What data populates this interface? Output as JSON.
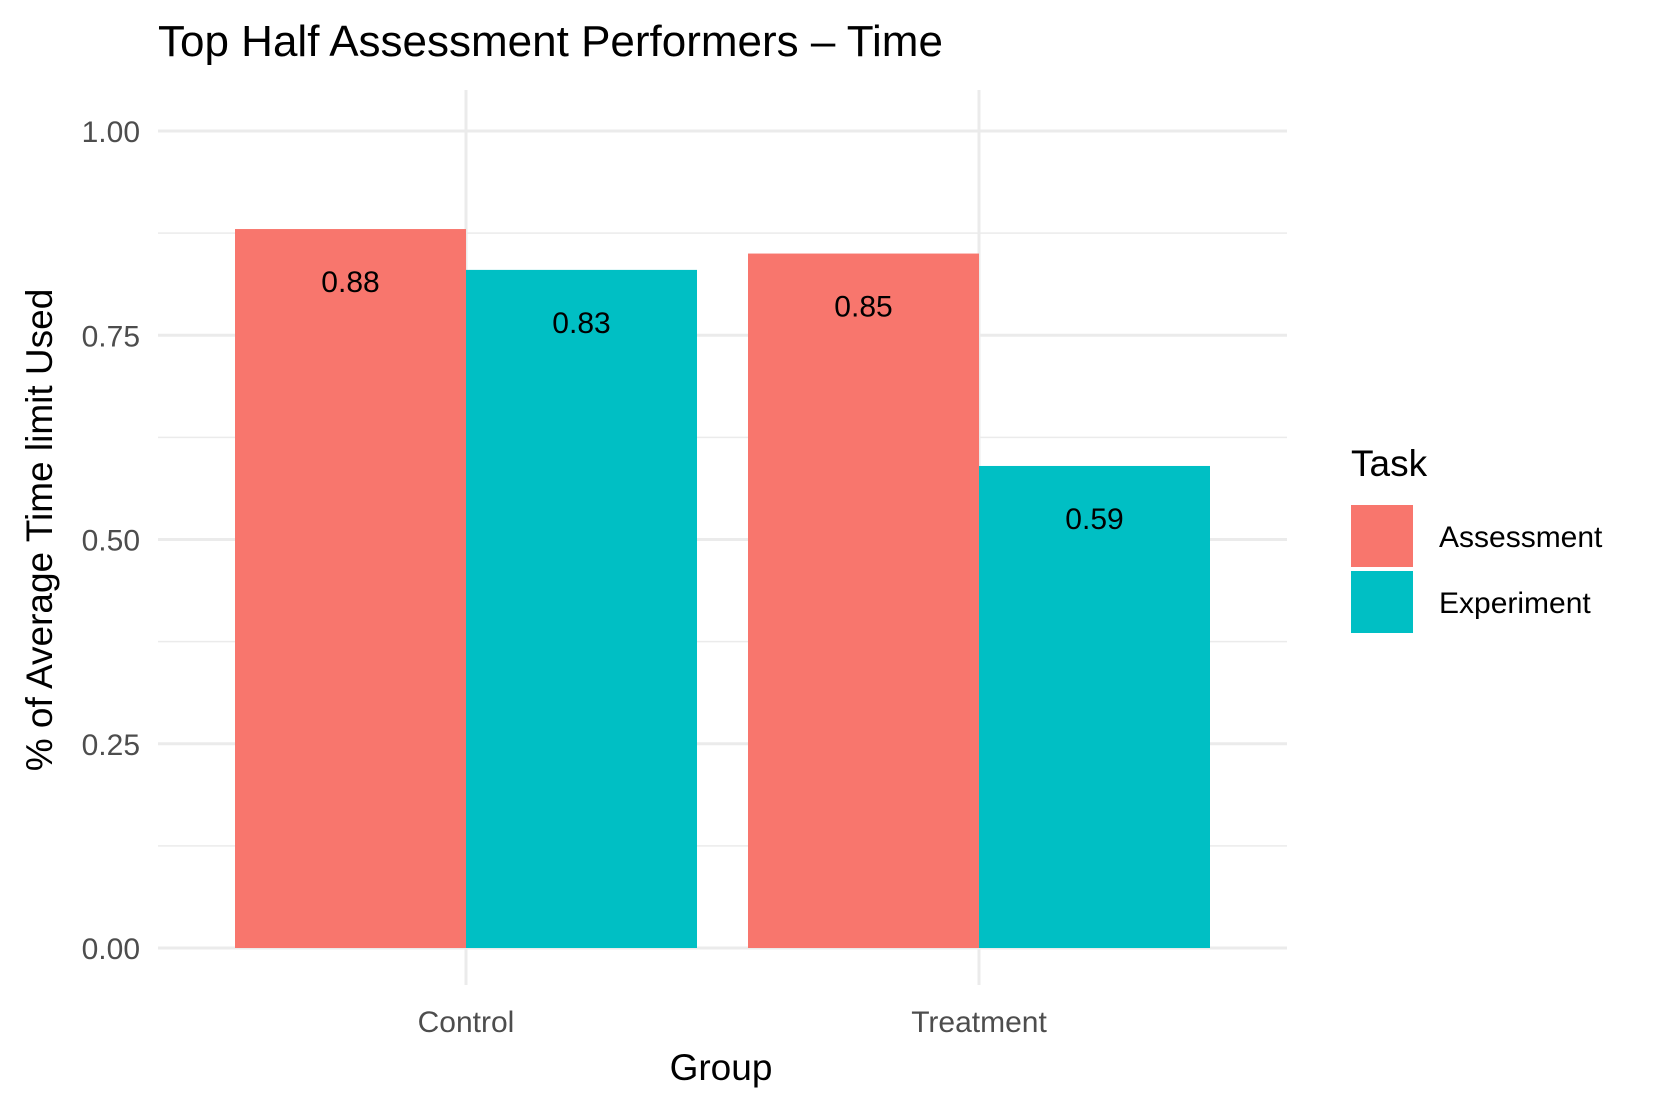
{
  "chart_data": {
    "type": "bar",
    "title": "Top Half Assessment Performers – Time",
    "xlabel": "Group",
    "ylabel": "% of Average Time limit Used",
    "categories": [
      "Control",
      "Treatment"
    ],
    "series": [
      {
        "name": "Assessment",
        "color": "#F8766D",
        "values": [
          0.88,
          0.85
        ],
        "labels": [
          "0.88",
          "0.85"
        ]
      },
      {
        "name": "Experiment",
        "color": "#00BFC4",
        "values": [
          0.83,
          0.59
        ],
        "labels": [
          "0.83",
          "0.59"
        ]
      }
    ],
    "ylim": [
      0,
      1.0
    ],
    "yticks": [
      0.0,
      0.25,
      0.5,
      0.75,
      1.0
    ],
    "ytick_labels": [
      "0.00",
      "0.25",
      "0.50",
      "0.75",
      "1.00"
    ],
    "grid": true,
    "legend": {
      "title": "Task",
      "position": "right"
    }
  }
}
